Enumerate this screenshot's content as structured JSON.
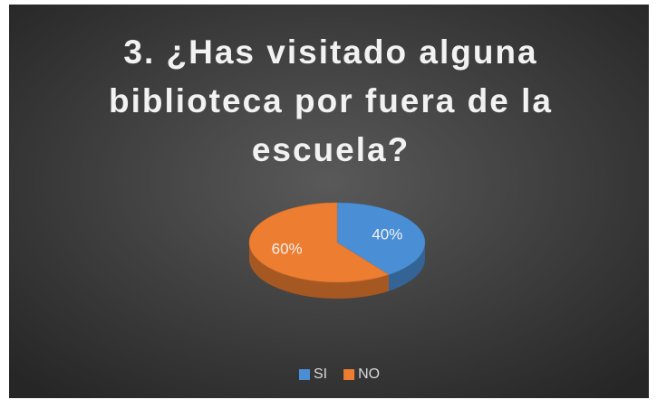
{
  "chart_data": {
    "type": "pie",
    "title": "3. ¿Has visitado alguna biblioteca por fuera de la escuela?",
    "categories": [
      "SI",
      "NO"
    ],
    "values": [
      40,
      60
    ],
    "value_labels": [
      "40%",
      "60%"
    ],
    "colors": [
      "#4a8fd6",
      "#ed7d31"
    ],
    "legend": "bottom"
  }
}
